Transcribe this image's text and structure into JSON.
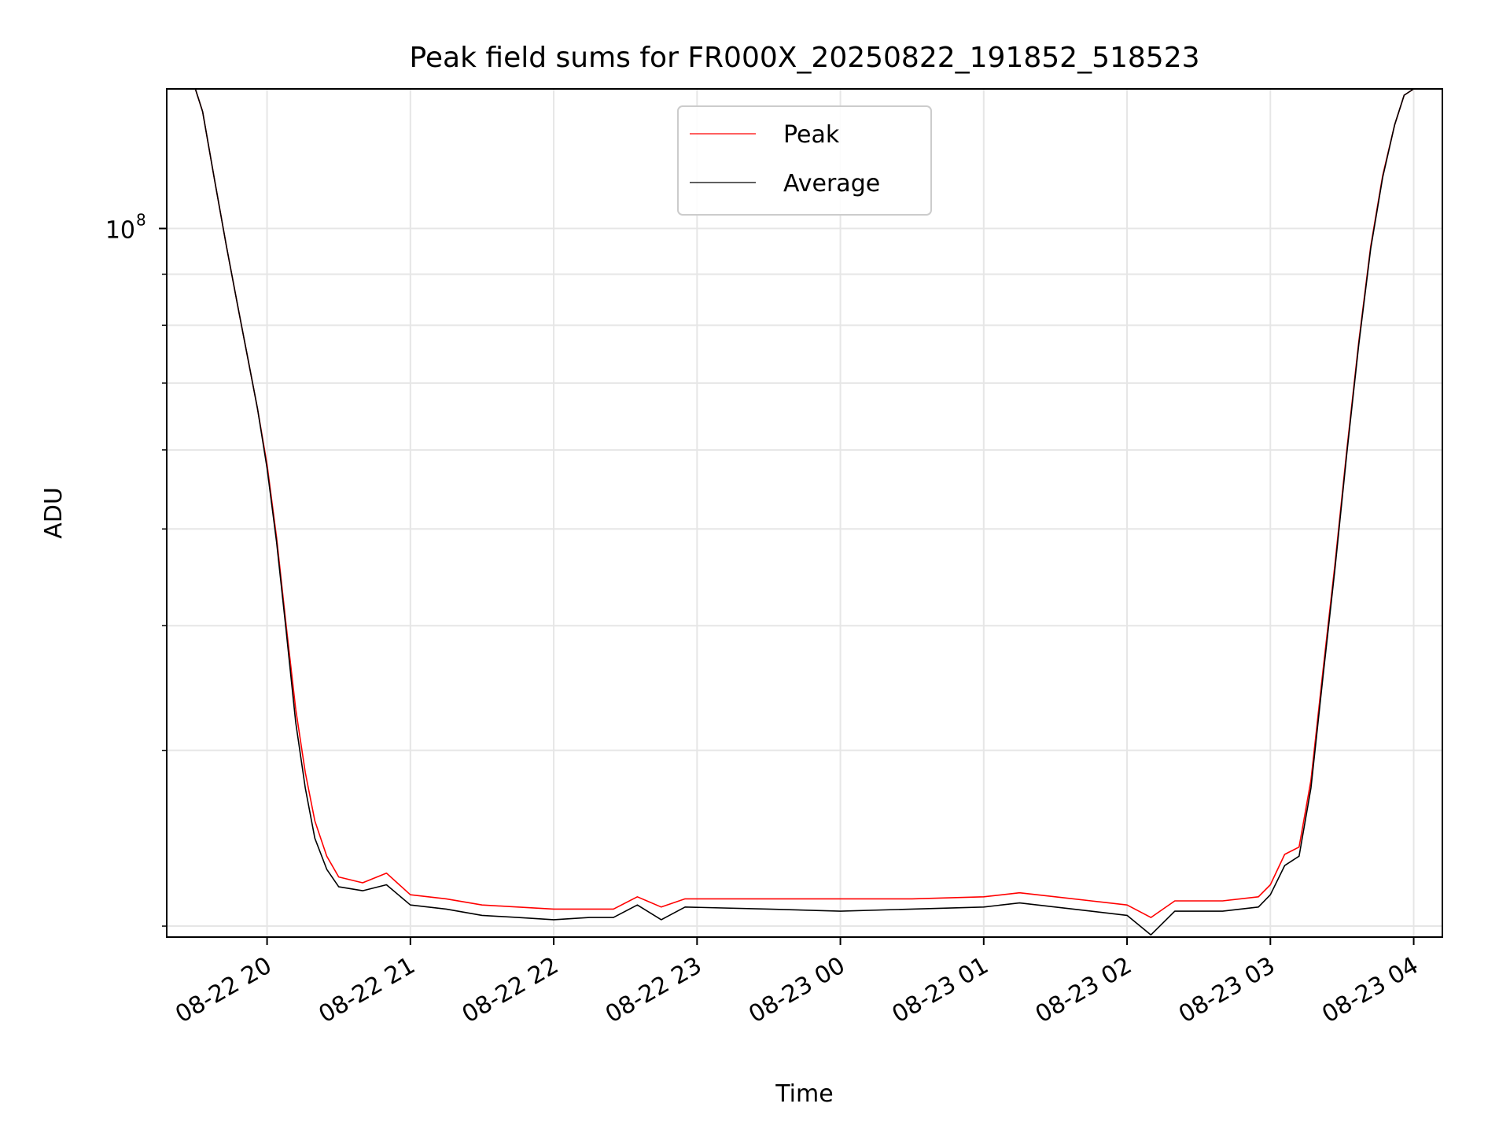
{
  "chart_data": {
    "type": "line",
    "title": "Peak field sums for FR000X_20250822_191852_518523",
    "xlabel": "Time",
    "ylabel": "ADU",
    "y_scale": "log",
    "ylim": [
      19500000,
      138000000
    ],
    "xlim": [
      "2025-08-22 19:18",
      "2025-08-23 04:12"
    ],
    "grid": true,
    "legend_position": "upper center",
    "x_ticks": [
      {
        "t": "2025-08-22 20:00",
        "label": "08-22 20"
      },
      {
        "t": "2025-08-22 21:00",
        "label": "08-22 21"
      },
      {
        "t": "2025-08-22 22:00",
        "label": "08-22 22"
      },
      {
        "t": "2025-08-22 23:00",
        "label": "08-22 23"
      },
      {
        "t": "2025-08-23 00:00",
        "label": "08-23 00"
      },
      {
        "t": "2025-08-23 01:00",
        "label": "08-23 01"
      },
      {
        "t": "2025-08-23 02:00",
        "label": "08-23 02"
      },
      {
        "t": "2025-08-23 03:00",
        "label": "08-23 03"
      },
      {
        "t": "2025-08-23 04:00",
        "label": "08-23 04"
      }
    ],
    "y_major_ticks": [
      {
        "value": 100000000,
        "label": "10",
        "exp": "8"
      }
    ],
    "y_minor_ticks": [
      20000000,
      30000000,
      40000000,
      50000000,
      60000000,
      70000000,
      80000000,
      90000000
    ],
    "series": [
      {
        "name": "Peak",
        "color": "#ff0000",
        "points": [
          [
            "2025-08-22 19:18",
            138000000
          ],
          [
            "2025-08-22 19:30",
            138000000
          ],
          [
            "2025-08-22 19:33",
            131000000
          ],
          [
            "2025-08-22 19:38",
            112000000
          ],
          [
            "2025-08-22 19:43",
            96000000
          ],
          [
            "2025-08-22 19:48",
            83000000
          ],
          [
            "2025-08-22 19:52",
            74000000
          ],
          [
            "2025-08-22 19:56",
            66000000
          ],
          [
            "2025-08-22 20:00",
            58000000
          ],
          [
            "2025-08-22 20:04",
            49000000
          ],
          [
            "2025-08-22 20:08",
            40000000
          ],
          [
            "2025-08-22 20:12",
            33000000
          ],
          [
            "2025-08-22 20:16",
            28500000
          ],
          [
            "2025-08-22 20:20",
            25500000
          ],
          [
            "2025-08-22 20:25",
            23500000
          ],
          [
            "2025-08-22 20:30",
            22400000
          ],
          [
            "2025-08-22 20:40",
            22100000
          ],
          [
            "2025-08-22 20:50",
            22600000
          ],
          [
            "2025-08-22 21:00",
            21500000
          ],
          [
            "2025-08-22 21:15",
            21300000
          ],
          [
            "2025-08-22 21:30",
            21000000
          ],
          [
            "2025-08-22 21:45",
            20900000
          ],
          [
            "2025-08-22 22:00",
            20800000
          ],
          [
            "2025-08-22 22:15",
            20800000
          ],
          [
            "2025-08-22 22:25",
            20800000
          ],
          [
            "2025-08-22 22:35",
            21400000
          ],
          [
            "2025-08-22 22:45",
            20900000
          ],
          [
            "2025-08-22 22:55",
            21300000
          ],
          [
            "2025-08-22 23:30",
            21300000
          ],
          [
            "2025-08-23 00:00",
            21300000
          ],
          [
            "2025-08-23 00:30",
            21300000
          ],
          [
            "2025-08-23 01:00",
            21400000
          ],
          [
            "2025-08-23 01:15",
            21600000
          ],
          [
            "2025-08-23 01:30",
            21400000
          ],
          [
            "2025-08-23 01:45",
            21200000
          ],
          [
            "2025-08-23 02:00",
            21000000
          ],
          [
            "2025-08-23 02:10",
            20400000
          ],
          [
            "2025-08-23 02:20",
            21200000
          ],
          [
            "2025-08-23 02:40",
            21200000
          ],
          [
            "2025-08-23 02:55",
            21400000
          ],
          [
            "2025-08-23 03:00",
            22000000
          ],
          [
            "2025-08-23 03:06",
            23600000
          ],
          [
            "2025-08-23 03:12",
            24000000
          ],
          [
            "2025-08-23 03:17",
            28000000
          ],
          [
            "2025-08-23 03:22",
            36000000
          ],
          [
            "2025-08-23 03:27",
            46000000
          ],
          [
            "2025-08-23 03:32",
            60000000
          ],
          [
            "2025-08-23 03:37",
            77000000
          ],
          [
            "2025-08-23 03:42",
            96000000
          ],
          [
            "2025-08-23 03:47",
            113000000
          ],
          [
            "2025-08-23 03:52",
            127000000
          ],
          [
            "2025-08-23 03:56",
            136000000
          ],
          [
            "2025-08-23 04:00",
            138000000
          ],
          [
            "2025-08-23 04:12",
            138000000
          ]
        ]
      },
      {
        "name": "Average",
        "color": "#000000",
        "points": [
          [
            "2025-08-22 19:18",
            138000000
          ],
          [
            "2025-08-22 19:30",
            138000000
          ],
          [
            "2025-08-22 19:33",
            131000000
          ],
          [
            "2025-08-22 19:38",
            112000000
          ],
          [
            "2025-08-22 19:43",
            96000000
          ],
          [
            "2025-08-22 19:48",
            83000000
          ],
          [
            "2025-08-22 19:52",
            74000000
          ],
          [
            "2025-08-22 19:56",
            66000000
          ],
          [
            "2025-08-22 20:00",
            57500000
          ],
          [
            "2025-08-22 20:04",
            48500000
          ],
          [
            "2025-08-22 20:08",
            39500000
          ],
          [
            "2025-08-22 20:12",
            32000000
          ],
          [
            "2025-08-22 20:16",
            27500000
          ],
          [
            "2025-08-22 20:20",
            24500000
          ],
          [
            "2025-08-22 20:25",
            22800000
          ],
          [
            "2025-08-22 20:30",
            21900000
          ],
          [
            "2025-08-22 20:40",
            21700000
          ],
          [
            "2025-08-22 20:50",
            22000000
          ],
          [
            "2025-08-22 21:00",
            21000000
          ],
          [
            "2025-08-22 21:15",
            20800000
          ],
          [
            "2025-08-22 21:30",
            20500000
          ],
          [
            "2025-08-22 21:45",
            20400000
          ],
          [
            "2025-08-22 22:00",
            20300000
          ],
          [
            "2025-08-22 22:15",
            20400000
          ],
          [
            "2025-08-22 22:25",
            20400000
          ],
          [
            "2025-08-22 22:35",
            21000000
          ],
          [
            "2025-08-22 22:45",
            20300000
          ],
          [
            "2025-08-22 22:55",
            20900000
          ],
          [
            "2025-08-22 23:30",
            20800000
          ],
          [
            "2025-08-23 00:00",
            20700000
          ],
          [
            "2025-08-23 00:30",
            20800000
          ],
          [
            "2025-08-23 01:00",
            20900000
          ],
          [
            "2025-08-23 01:15",
            21100000
          ],
          [
            "2025-08-23 01:30",
            20900000
          ],
          [
            "2025-08-23 01:45",
            20700000
          ],
          [
            "2025-08-23 02:00",
            20500000
          ],
          [
            "2025-08-23 02:10",
            19600000
          ],
          [
            "2025-08-23 02:20",
            20700000
          ],
          [
            "2025-08-23 02:40",
            20700000
          ],
          [
            "2025-08-23 02:55",
            20900000
          ],
          [
            "2025-08-23 03:00",
            21500000
          ],
          [
            "2025-08-23 03:06",
            23000000
          ],
          [
            "2025-08-23 03:12",
            23500000
          ],
          [
            "2025-08-23 03:17",
            27500000
          ],
          [
            "2025-08-23 03:22",
            35500000
          ],
          [
            "2025-08-23 03:27",
            45500000
          ],
          [
            "2025-08-23 03:32",
            59500000
          ],
          [
            "2025-08-23 03:37",
            76500000
          ],
          [
            "2025-08-23 03:42",
            95500000
          ],
          [
            "2025-08-23 03:47",
            112500000
          ],
          [
            "2025-08-23 03:52",
            127000000
          ],
          [
            "2025-08-23 03:56",
            136000000
          ],
          [
            "2025-08-23 04:00",
            138000000
          ],
          [
            "2025-08-23 04:12",
            138000000
          ]
        ]
      }
    ]
  }
}
